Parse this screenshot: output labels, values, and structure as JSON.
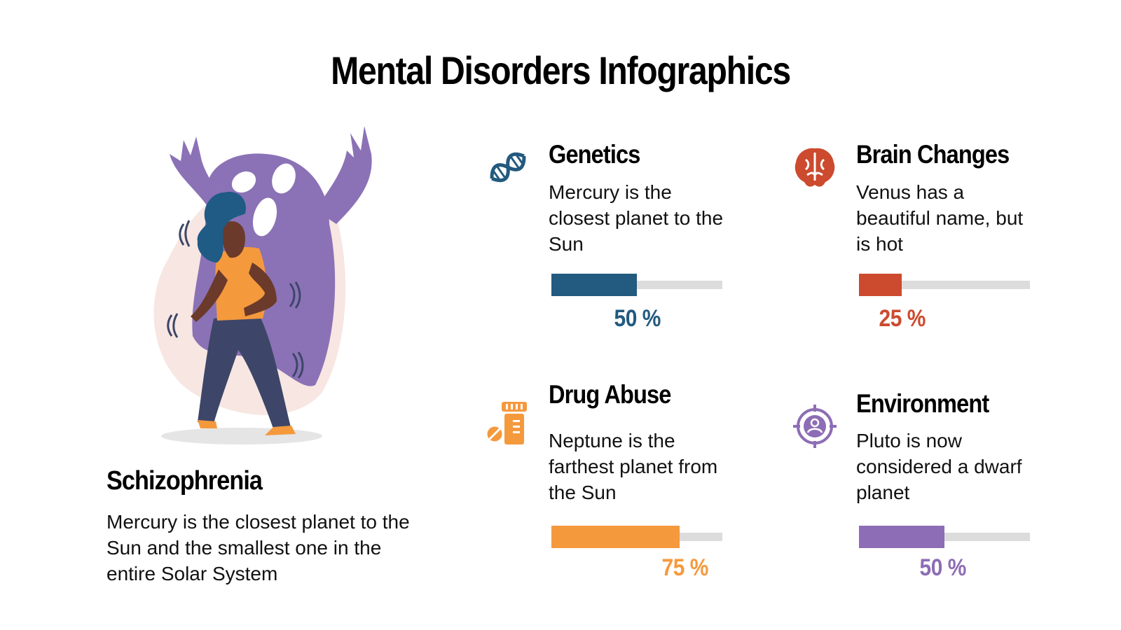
{
  "title": "Mental Disorders Infographics",
  "main": {
    "title": "Schizophrenia",
    "description": "Mercury is the closest planet to the Sun and the smallest one in the entire Solar System"
  },
  "cards": [
    {
      "title": "Genetics",
      "description": "Mercury is the closest planet to the Sun",
      "percent_label": "50 %",
      "value": 0.5,
      "color": "#235a7f",
      "icon": "dna-icon"
    },
    {
      "title": "Brain Changes",
      "description": "Venus has a beautiful name, but is hot",
      "percent_label": "25 %",
      "value": 0.25,
      "color": "#cc4a2e",
      "icon": "brain-icon"
    },
    {
      "title": "Drug Abuse",
      "description": "Neptune is the farthest planet from the Sun",
      "percent_label": "75 %",
      "value": 0.75,
      "color": "#f5993d",
      "icon": "pill-bottle-icon"
    },
    {
      "title": "Environment",
      "description": "Pluto is now considered a dwarf planet",
      "percent_label": "50 %",
      "value": 0.5,
      "color": "#8d6db5",
      "icon": "target-person-icon"
    }
  ]
}
